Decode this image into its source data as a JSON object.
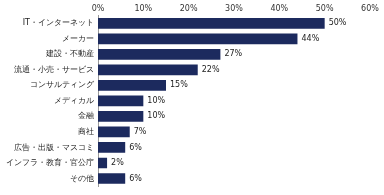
{
  "chart_data": {
    "type": "bar",
    "orientation": "horizontal",
    "categories": [
      "IT・インターネット",
      "メーカー",
      "建設・不動産",
      "流通・小売・サービス",
      "コンサルティング",
      "メディカル",
      "金融",
      "商社",
      "広告・出版・マスコミ",
      "インフラ・教育・官公庁",
      "その他"
    ],
    "values": [
      50,
      44,
      27,
      22,
      15,
      10,
      10,
      7,
      6,
      2,
      6
    ],
    "value_labels": [
      "50%",
      "44%",
      "27%",
      "22%",
      "15%",
      "10%",
      "10%",
      "7%",
      "6%",
      "2%",
      "6%"
    ],
    "color": "#1c2a5e",
    "xlim": [
      0,
      60
    ],
    "xticks": [
      {
        "value": 0,
        "label": "0%"
      },
      {
        "value": 10,
        "label": "10%"
      },
      {
        "value": 20,
        "label": "20%"
      },
      {
        "value": 30,
        "label": "30%"
      },
      {
        "value": 40,
        "label": "40%"
      },
      {
        "value": 50,
        "label": "50%"
      },
      {
        "value": 60,
        "label": "60%"
      }
    ],
    "grid": false,
    "data_labels": true
  }
}
